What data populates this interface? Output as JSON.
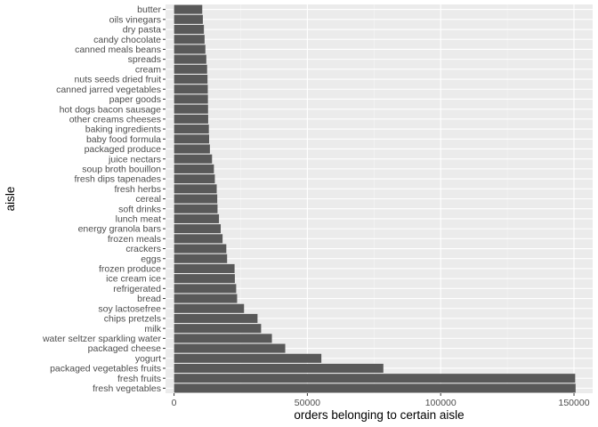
{
  "chart_data": {
    "type": "bar",
    "orientation": "horizontal",
    "xlabel": "orders belonging to certain aisle",
    "ylabel": "aisle",
    "xlim": [
      -3200,
      157000
    ],
    "xticks": [
      0,
      50000,
      100000,
      150000
    ],
    "xtick_labels": [
      "0",
      "50000",
      "100000",
      "150000"
    ],
    "grid": true,
    "categories": [
      "butter",
      "oils vinegars",
      "dry pasta",
      "candy chocolate",
      "canned meals beans",
      "spreads",
      "cream",
      "nuts seeds dried fruit",
      "canned jarred vegetables",
      "paper goods",
      "hot dogs bacon sausage",
      "other creams cheeses",
      "baking ingredients",
      "baby food formula",
      "packaged produce",
      "juice nectars",
      "soup broth bouillon",
      "fresh dips tapenades",
      "fresh herbs",
      "cereal",
      "soft drinks",
      "lunch meat",
      "energy granola bars",
      "frozen meals",
      "crackers",
      "eggs",
      "frozen produce",
      "ice cream ice",
      "refrigerated",
      "bread",
      "soy lactosefree",
      "chips pretzels",
      "milk",
      "water seltzer sparkling water",
      "packaged cheese",
      "yogurt",
      "packaged vegetables fruits",
      "fresh fruits",
      "fresh vegetables"
    ],
    "values": [
      10575,
      10800,
      11200,
      11450,
      11750,
      12100,
      12400,
      12550,
      12650,
      12700,
      12750,
      12800,
      13050,
      13150,
      13450,
      14250,
      14950,
      15300,
      16000,
      16200,
      16300,
      16850,
      17500,
      18200,
      19600,
      19900,
      22700,
      22800,
      23300,
      23650,
      26250,
      31300,
      32650,
      36700,
      41700,
      55250,
      78500,
      150450,
      150600
    ],
    "colors": {
      "panel": "#ebebeb",
      "grid_major": "#ffffff",
      "bar": "#595959"
    }
  }
}
